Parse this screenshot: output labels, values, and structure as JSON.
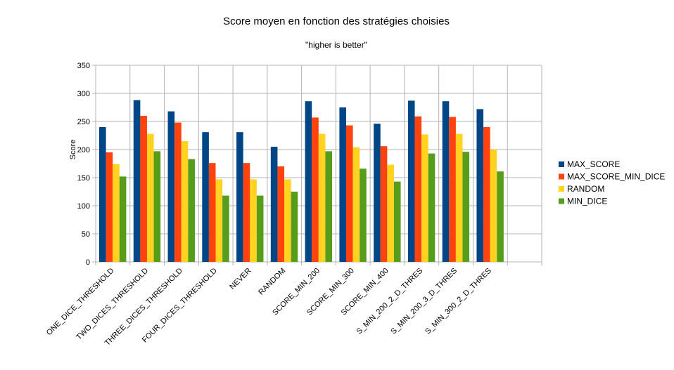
{
  "chart_data": {
    "type": "bar",
    "title": "Score moyen en fonction des stratégies choisies",
    "subtitle": "\"higher is better\"",
    "xlabel": "",
    "ylabel": "Score",
    "ylim": [
      0,
      350
    ],
    "yticks": [
      0,
      50,
      100,
      150,
      200,
      250,
      300,
      350
    ],
    "grid": true,
    "legend_position": "right",
    "categories": [
      "ONE_DICE_THRESHOLD",
      "TWO_DICES_THRESHOLD",
      "THREE_DICES_THRESHOLD",
      "FOUR_DICES_THRESHOLD",
      "NEVER",
      "RANDOM",
      "SCORE_MIN_200",
      "SCORE_MIN_300",
      "SCORE_MIN_400",
      "S_MIN_200_2_D_THRES",
      "S_MIN_200_3_D_THRES",
      "S_MIN_300_2_D_THRES",
      ""
    ],
    "series": [
      {
        "name": "MAX_SCORE",
        "color": "#004586",
        "values": [
          240,
          288,
          268,
          231,
          231,
          205,
          286,
          275,
          246,
          287,
          286,
          272,
          null
        ]
      },
      {
        "name": "MAX_SCORE_MIN_DICE",
        "color": "#ff420e",
        "values": [
          195,
          260,
          248,
          176,
          176,
          170,
          257,
          243,
          206,
          259,
          258,
          240,
          null
        ]
      },
      {
        "name": "RANDOM",
        "color": "#ffd320",
        "values": [
          174,
          228,
          215,
          147,
          147,
          147,
          228,
          204,
          173,
          227,
          228,
          200,
          null
        ]
      },
      {
        "name": "MIN_DICE",
        "color": "#579d1c",
        "values": [
          152,
          197,
          183,
          118,
          118,
          125,
          197,
          166,
          143,
          193,
          196,
          161,
          null
        ]
      }
    ]
  }
}
